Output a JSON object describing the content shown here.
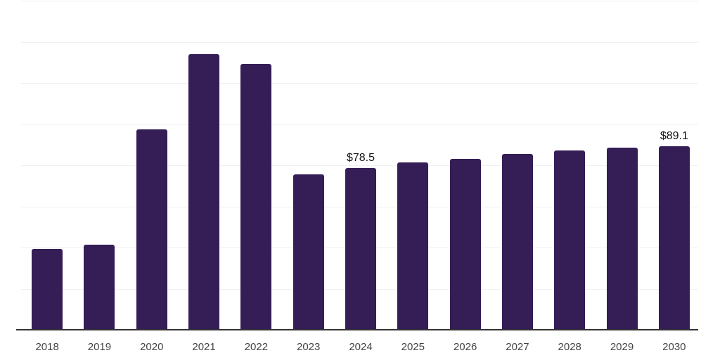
{
  "chart_data": {
    "type": "bar",
    "title": "",
    "xlabel": "",
    "ylabel": "",
    "categories": [
      "2018",
      "2019",
      "2020",
      "2021",
      "2022",
      "2023",
      "2024",
      "2025",
      "2026",
      "2027",
      "2028",
      "2029",
      "2030"
    ],
    "values": [
      39.4,
      41.4,
      97.6,
      133.9,
      129.1,
      75.7,
      78.5,
      81.2,
      83.2,
      85.6,
      87.3,
      88.7,
      89.1
    ],
    "value_labels": [
      {
        "category": "2024",
        "index": 6,
        "text": "$78.5"
      },
      {
        "category": "2030",
        "index": 12,
        "text": "$89.1"
      }
    ],
    "ylim": [
      0,
      160
    ],
    "y_gridline_step": 20,
    "y_tick_labels_visible": false,
    "grid": "horizontal-only",
    "legend_position": "none",
    "colors": {
      "bar": "#351d56",
      "gridline": "#f0f0f0",
      "axis_line": "#333333",
      "x_tick_label": "#444444",
      "value_label": "#111111",
      "background": "#ffffff"
    }
  }
}
